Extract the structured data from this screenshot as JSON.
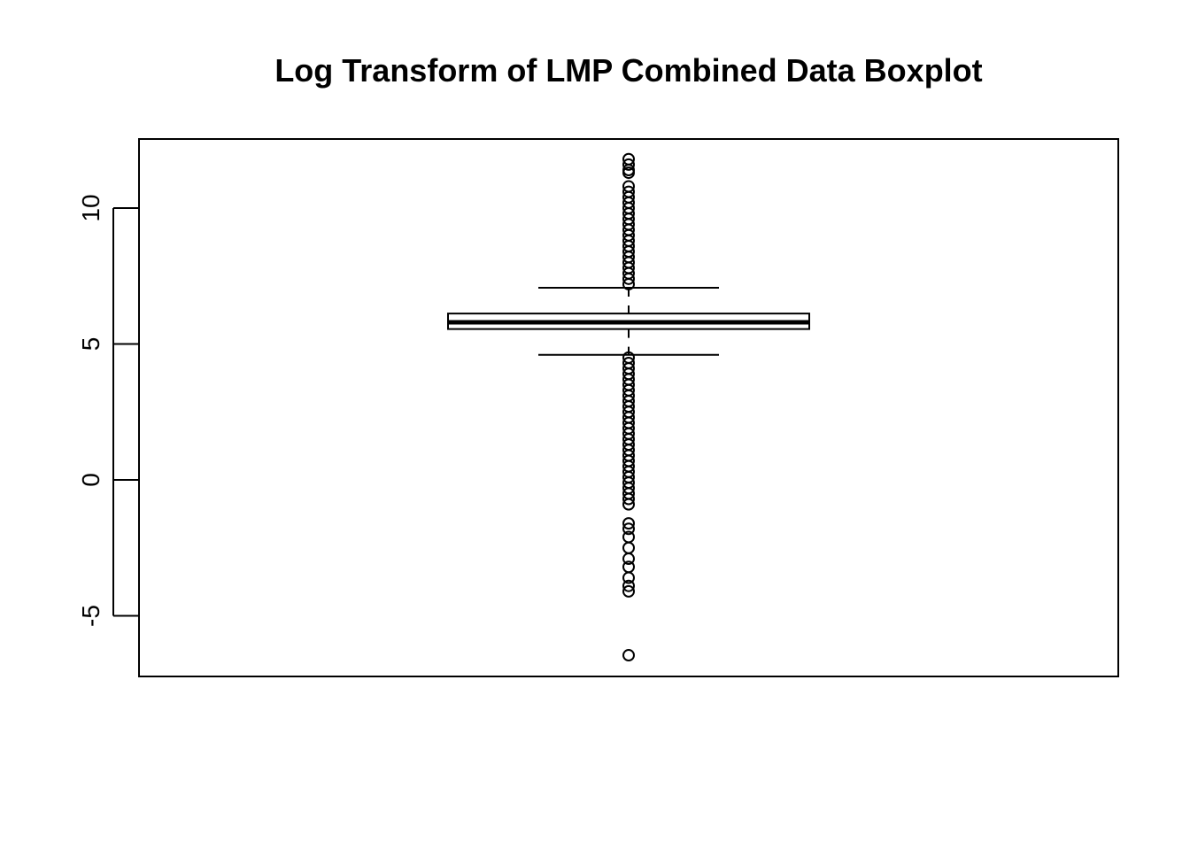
{
  "chart_data": {
    "type": "boxplot",
    "title": "Log Transform of LMP Combined Data Boxplot",
    "xlabel": "",
    "ylabel": "",
    "ylim": [
      -7.2,
      12.6
    ],
    "yticks": [
      {
        "value": 10,
        "label": "10"
      },
      {
        "value": 5,
        "label": "5"
      },
      {
        "value": 0,
        "label": "0"
      },
      {
        "value": -5,
        "label": "-5"
      }
    ],
    "grid": false,
    "legend": "none",
    "box": {
      "whisker_low": 4.6,
      "q1": 5.55,
      "median": 5.8,
      "q3": 6.12,
      "whisker_high": 7.07
    },
    "outliers_high": [
      11.8,
      11.6,
      11.4,
      11.3,
      10.8,
      10.6,
      10.4,
      10.2,
      10.0,
      9.8,
      9.6,
      9.4,
      9.2,
      9.0,
      8.8,
      8.6,
      8.4,
      8.2,
      8.0,
      7.8,
      7.6,
      7.4,
      7.2
    ],
    "outliers_low": [
      4.5,
      4.3,
      4.1,
      3.9,
      3.7,
      3.5,
      3.3,
      3.1,
      2.9,
      2.7,
      2.5,
      2.3,
      2.1,
      1.9,
      1.7,
      1.5,
      1.3,
      1.1,
      0.9,
      0.7,
      0.5,
      0.3,
      0.1,
      -0.1,
      -0.3,
      -0.5,
      -0.7,
      -0.9,
      -1.6,
      -1.8,
      -2.1,
      -2.5,
      -2.9,
      -3.2,
      -3.6,
      -3.9,
      -4.1,
      -6.45
    ],
    "colors": {
      "stroke": "#000000",
      "background": "#ffffff"
    }
  }
}
